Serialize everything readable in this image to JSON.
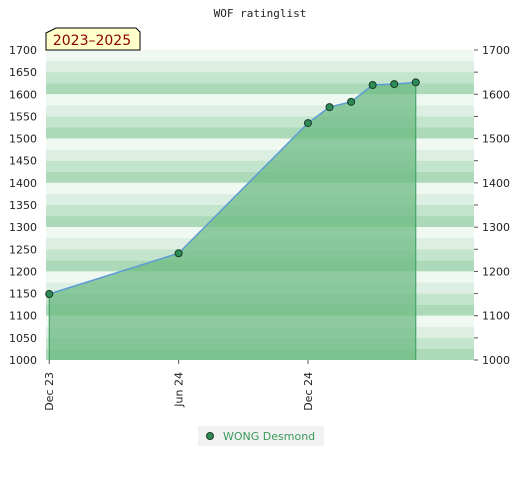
{
  "chart_data": {
    "type": "area",
    "title": "WOF ratinglist",
    "badge": "2023–2025",
    "xlabel": "",
    "ylabel": "",
    "x_ticks": [
      "Dec 23",
      "Jun 24",
      "Dec 24"
    ],
    "x_range": [
      "2023-12",
      "2025-08"
    ],
    "ylim": [
      1000,
      1700
    ],
    "y_ticks": [
      1000,
      1050,
      1100,
      1150,
      1200,
      1250,
      1300,
      1350,
      1400,
      1450,
      1500,
      1550,
      1600,
      1650,
      1700
    ],
    "y_ticks_right": [
      1000,
      1100,
      1200,
      1300,
      1400,
      1500,
      1600,
      1700
    ],
    "legend": {
      "placement": "bottom-center"
    },
    "series": [
      {
        "name": "WONG Desmond",
        "points": [
          {
            "x": "2023-12",
            "y": 1149
          },
          {
            "x": "2024-06",
            "y": 1241
          },
          {
            "x": "2024-12",
            "y": 1535
          },
          {
            "x": "2025-01",
            "y": 1571
          },
          {
            "x": "2025-02",
            "y": 1583
          },
          {
            "x": "2025-03",
            "y": 1621
          },
          {
            "x": "2025-04",
            "y": 1623
          },
          {
            "x": "2025-05",
            "y": 1627
          }
        ]
      }
    ],
    "colors": {
      "line": "#5b9bd5",
      "area": "#6dbb83",
      "marker": "#2e8b57",
      "legend_text": "#3a9a5a",
      "badge_bg": "#ffffcc"
    }
  }
}
